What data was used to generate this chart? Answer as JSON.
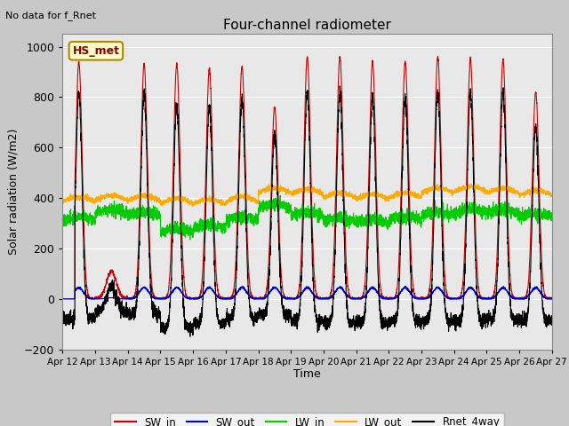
{
  "title": "Four-channel radiometer",
  "top_left_text": "No data for f_Rnet",
  "ylabel": "Solar radiation (W/m2)",
  "xlabel": "Time",
  "station_label": "HS_met",
  "ylim": [
    -200,
    1050
  ],
  "days": 15,
  "x_tick_labels": [
    "Apr 12",
    "Apr 13",
    "Apr 14",
    "Apr 15",
    "Apr 16",
    "Apr 17",
    "Apr 18",
    "Apr 19",
    "Apr 20",
    "Apr 21",
    "Apr 22",
    "Apr 23",
    "Apr 24",
    "Apr 25",
    "Apr 26",
    "Apr 27"
  ],
  "fig_bg_color": "#c8c8c8",
  "plot_bg_color": "#e8e8e8",
  "grid_color": "#ffffff",
  "legend": [
    {
      "label": "SW_in",
      "color": "#cc0000"
    },
    {
      "label": "SW_out",
      "color": "#0000dd"
    },
    {
      "label": "LW_in",
      "color": "#00cc00"
    },
    {
      "label": "LW_out",
      "color": "#ffaa00"
    },
    {
      "label": "Rnet_4way",
      "color": "#000000"
    }
  ],
  "station_box_facecolor": "#ffffcc",
  "station_box_edgecolor": "#aa8800",
  "station_text_color": "#8B0000"
}
